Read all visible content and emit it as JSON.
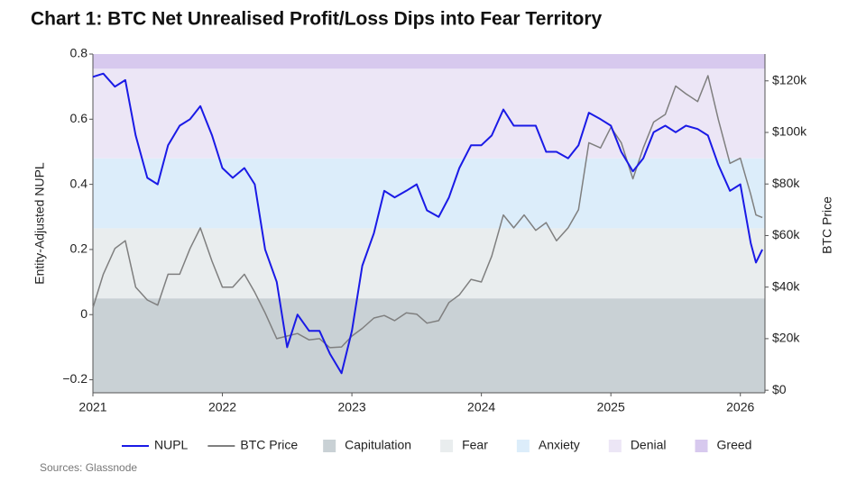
{
  "chart_data": {
    "type": "line",
    "title": "Chart 1: BTC Net Unrealised Profit/Loss Dips into Fear Territory",
    "source": "Sources: Glassnode",
    "y_label": "Entity-Adjusted NUPL",
    "y2_label": "BTC Price",
    "xlim": [
      2021,
      2026.19
    ],
    "xticks": [
      2021,
      2022,
      2023,
      2024,
      2025,
      2026
    ],
    "ylim": [
      -0.24,
      0.8
    ],
    "yticks": [
      {
        "value": -0.2,
        "label": "−0.2"
      },
      0,
      0.2,
      0.4,
      0.6,
      0.8
    ],
    "y2lim": [
      -1000,
      130400
    ],
    "y2ticks": [
      {
        "value": 0,
        "label": "$0"
      },
      {
        "value": 20000,
        "label": "$20k"
      },
      {
        "value": 40000,
        "label": "$40k"
      },
      {
        "value": 60000,
        "label": "$60k"
      },
      {
        "value": 80000,
        "label": "$80k"
      },
      {
        "value": 100000,
        "label": "$100k"
      },
      {
        "value": 120000,
        "label": "$120k"
      }
    ],
    "bands": [
      {
        "name": "Capitulation",
        "range": [
          -0.24,
          0.05
        ],
        "color": "#c9d1d5"
      },
      {
        "name": "Fear",
        "range": [
          0.05,
          0.265
        ],
        "color": "#e9edee"
      },
      {
        "name": "Anxiety",
        "range": [
          0.265,
          0.48
        ],
        "color": "#dcedfa"
      },
      {
        "name": "Denial",
        "range": [
          0.48,
          0.755
        ],
        "color": "#ece6f6"
      },
      {
        "name": "Greed",
        "range": [
          0.755,
          0.8
        ],
        "color": "#d7c9ee"
      }
    ],
    "x": [
      2021.0,
      2021.08,
      2021.17,
      2021.25,
      2021.33,
      2021.42,
      2021.5,
      2021.58,
      2021.67,
      2021.75,
      2021.83,
      2021.92,
      2022.0,
      2022.08,
      2022.17,
      2022.25,
      2022.33,
      2022.42,
      2022.5,
      2022.58,
      2022.67,
      2022.75,
      2022.83,
      2022.92,
      2023.0,
      2023.08,
      2023.17,
      2023.25,
      2023.33,
      2023.42,
      2023.5,
      2023.58,
      2023.67,
      2023.75,
      2023.83,
      2023.92,
      2024.0,
      2024.08,
      2024.17,
      2024.25,
      2024.33,
      2024.42,
      2024.5,
      2024.58,
      2024.67,
      2024.75,
      2024.83,
      2024.92,
      2025.0,
      2025.08,
      2025.17,
      2025.25,
      2025.33,
      2025.42,
      2025.5,
      2025.58,
      2025.67,
      2025.75,
      2025.83,
      2025.92,
      2026.0,
      2026.08,
      2026.12,
      2026.17
    ],
    "series": [
      {
        "name": "NUPL",
        "color": "#1a1ae6",
        "axis": "y",
        "values": [
          0.73,
          0.74,
          0.7,
          0.72,
          0.55,
          0.42,
          0.4,
          0.52,
          0.58,
          0.6,
          0.64,
          0.55,
          0.45,
          0.42,
          0.45,
          0.4,
          0.2,
          0.1,
          -0.1,
          0.0,
          -0.05,
          -0.05,
          -0.12,
          -0.18,
          -0.05,
          0.15,
          0.25,
          0.38,
          0.36,
          0.38,
          0.4,
          0.32,
          0.3,
          0.36,
          0.45,
          0.52,
          0.52,
          0.55,
          0.63,
          0.58,
          0.58,
          0.58,
          0.5,
          0.5,
          0.48,
          0.52,
          0.62,
          0.6,
          0.58,
          0.5,
          0.44,
          0.48,
          0.56,
          0.58,
          0.56,
          0.58,
          0.57,
          0.55,
          0.46,
          0.38,
          0.4,
          0.22,
          0.16,
          0.2
        ]
      },
      {
        "name": "BTC Price",
        "color": "#7f7f7f",
        "axis": "y2",
        "values": [
          32000,
          45000,
          55000,
          58000,
          40000,
          35000,
          33000,
          45000,
          45000,
          55000,
          63000,
          50000,
          40000,
          40000,
          45000,
          38000,
          30000,
          20000,
          21000,
          22000,
          19500,
          20000,
          16500,
          16800,
          21000,
          24000,
          28000,
          29000,
          27000,
          30000,
          29500,
          26000,
          27000,
          34000,
          37000,
          43000,
          42000,
          52000,
          68000,
          63000,
          68000,
          62000,
          65000,
          58000,
          63000,
          70000,
          96000,
          94000,
          102000,
          96000,
          82000,
          94000,
          104000,
          107000,
          118000,
          115000,
          112000,
          122000,
          105000,
          88000,
          90000,
          76000,
          68000,
          67000
        ]
      }
    ]
  }
}
